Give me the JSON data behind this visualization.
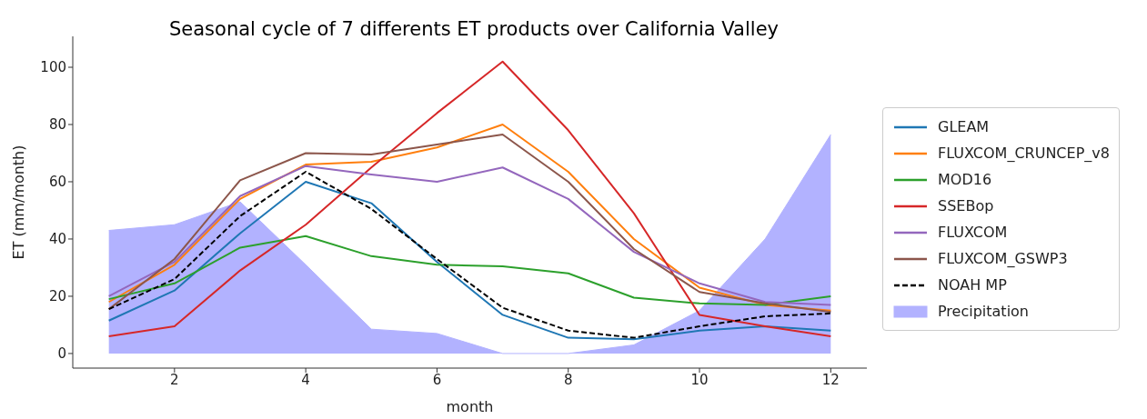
{
  "chart_data": {
    "type": "line",
    "title": "Seasonal cycle of 7 differents ET products over California Valley",
    "xlabel": "month",
    "ylabel": "ET (mm/month)",
    "x": [
      1,
      2,
      3,
      4,
      5,
      6,
      7,
      8,
      9,
      10,
      11,
      12
    ],
    "xlim": [
      0.45,
      12.55
    ],
    "xticks": [
      2,
      4,
      6,
      8,
      10,
      12
    ],
    "ylim": [
      -5.1,
      110.8
    ],
    "yticks": [
      0,
      20,
      40,
      60,
      80,
      100
    ],
    "grid": false,
    "legend": "right",
    "marker": "none",
    "series": [
      {
        "name": "GLEAM",
        "color": "#1f77b4",
        "values": [
          11.5,
          22,
          42,
          60,
          52.5,
          32,
          13.5,
          5.5,
          5,
          8,
          9.5,
          8
        ]
      },
      {
        "name": "FLUXCOM_CRUNCEP_v8",
        "color": "#ff7f0e",
        "values": [
          18,
          31,
          54,
          66,
          67,
          72,
          80,
          63.5,
          40,
          23,
          17,
          15
        ]
      },
      {
        "name": "MOD16",
        "color": "#2ca02c",
        "values": [
          19,
          24.5,
          37,
          41,
          34,
          31,
          30.5,
          28,
          19.5,
          17.5,
          17,
          20
        ]
      },
      {
        "name": "SSEBop",
        "color": "#d62728",
        "values": [
          6,
          9.5,
          29,
          45,
          65,
          84,
          102,
          78,
          49,
          13.5,
          9.5,
          6
        ]
      },
      {
        "name": "FLUXCOM",
        "color": "#9467bd",
        "values": [
          20,
          32,
          55,
          65.5,
          62.5,
          60,
          65,
          54,
          35.5,
          24.5,
          18,
          17
        ]
      },
      {
        "name": "FLUXCOM_GSWP3",
        "color": "#8c564b",
        "values": [
          15.5,
          33,
          60.5,
          70,
          69.5,
          73,
          76.5,
          60,
          36.5,
          21.5,
          17.5,
          14.5
        ]
      },
      {
        "name": "NOAH MP",
        "color": "#000000",
        "line_style": "dashed",
        "values": [
          15.5,
          26,
          48,
          63.5,
          50.5,
          33,
          16,
          8,
          5.5,
          9.5,
          13,
          14
        ]
      },
      {
        "name": "Precipitation",
        "type": "area",
        "color": "#b2b2ff",
        "values": [
          43,
          45,
          53,
          31,
          8.5,
          7,
          0,
          0,
          3,
          15,
          40,
          76.5
        ]
      }
    ]
  }
}
